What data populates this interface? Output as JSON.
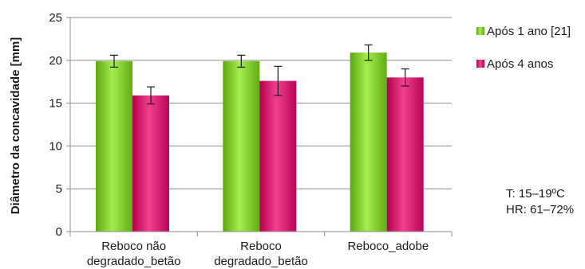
{
  "chart_data": {
    "type": "bar",
    "title": "",
    "xlabel": "",
    "ylabel": "Diâmetro da concavidade [mm]",
    "ylim": [
      0,
      25
    ],
    "yticks": [
      0,
      5,
      10,
      15,
      20,
      25
    ],
    "grid": true,
    "legend_position": "right",
    "categories": [
      [
        "Reboco não",
        "degradado_betão"
      ],
      [
        "Reboco",
        "degradado_betão"
      ],
      [
        "Reboco_adobe"
      ]
    ],
    "series": [
      {
        "name": "Após 1 ano [21]",
        "color": "#7ed321",
        "values": [
          19.9,
          19.9,
          20.9
        ],
        "errors": [
          0.7,
          0.7,
          0.9
        ]
      },
      {
        "name": "Após 4 anos",
        "color": "#e0126e",
        "values": [
          15.9,
          17.6,
          18.0
        ],
        "errors": [
          1.0,
          1.7,
          1.0
        ]
      }
    ],
    "annotations": [
      "T: 15–19ºC",
      "HR: 61–72%"
    ]
  }
}
